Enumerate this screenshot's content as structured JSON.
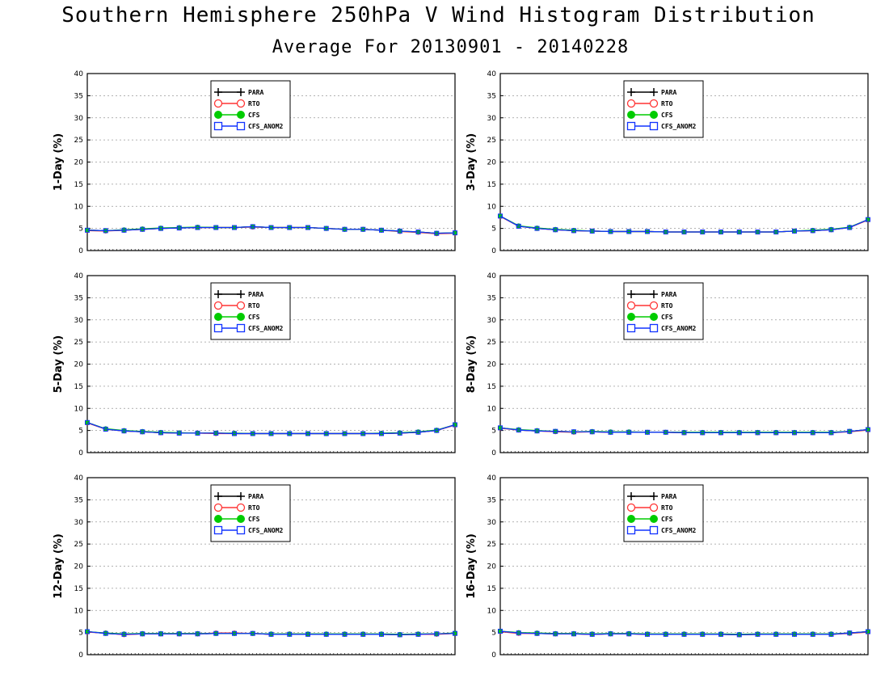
{
  "page": {
    "title": "Southern Hemisphere 250hPa V Wind Histogram Distribution",
    "subtitle": "Average For 20130901 - 20140228"
  },
  "legend_entries": [
    {
      "name": "PARA",
      "color": "#000000",
      "marker": "plus"
    },
    {
      "name": "RTO",
      "color": "#ff3333",
      "marker": "open-circle"
    },
    {
      "name": "CFS",
      "color": "#00cc00",
      "marker": "filled-circle"
    },
    {
      "name": "CFS_ANOM2",
      "color": "#1133ff",
      "marker": "open-square"
    }
  ],
  "chart_data": [
    {
      "type": "line",
      "ylabel": "1-Day (%)",
      "ylim": [
        0,
        40
      ],
      "yticks": [
        0,
        5,
        10,
        15,
        20,
        25,
        30,
        35,
        40
      ],
      "grid": true,
      "legend_position": "top-center",
      "x": [
        1,
        2,
        3,
        4,
        5,
        6,
        7,
        8,
        9,
        10,
        11,
        12,
        13,
        14,
        15,
        16,
        17,
        18,
        19,
        20,
        21
      ],
      "series": [
        {
          "name": "PARA",
          "color": "#000000",
          "values": [
            4.6,
            4.5,
            4.6,
            4.8,
            5.0,
            5.1,
            5.2,
            5.2,
            5.2,
            5.4,
            5.2,
            5.2,
            5.2,
            5.0,
            4.8,
            4.8,
            4.6,
            4.4,
            4.2,
            3.9,
            4.0
          ]
        },
        {
          "name": "RTO",
          "color": "#ff3333",
          "values": [
            4.5,
            4.4,
            4.6,
            4.8,
            5.0,
            5.1,
            5.2,
            5.2,
            5.2,
            5.3,
            5.2,
            5.2,
            5.2,
            5.0,
            4.8,
            4.8,
            4.6,
            4.3,
            4.1,
            3.8,
            3.9
          ]
        },
        {
          "name": "CFS",
          "color": "#00cc00",
          "values": [
            4.6,
            4.5,
            4.7,
            4.9,
            5.1,
            5.2,
            5.3,
            5.2,
            5.2,
            5.4,
            5.2,
            5.2,
            5.2,
            5.0,
            4.8,
            4.8,
            4.6,
            4.4,
            4.2,
            3.9,
            4.0
          ]
        },
        {
          "name": "CFS_ANOM2",
          "color": "#1133ff",
          "values": [
            4.6,
            4.5,
            4.6,
            4.8,
            5.0,
            5.1,
            5.2,
            5.2,
            5.2,
            5.4,
            5.2,
            5.2,
            5.2,
            5.0,
            4.8,
            4.8,
            4.6,
            4.4,
            4.2,
            3.9,
            4.0
          ]
        }
      ]
    },
    {
      "type": "line",
      "ylabel": "3-Day (%)",
      "ylim": [
        0,
        40
      ],
      "yticks": [
        0,
        5,
        10,
        15,
        20,
        25,
        30,
        35,
        40
      ],
      "grid": true,
      "legend_position": "top-center",
      "x": [
        1,
        2,
        3,
        4,
        5,
        6,
        7,
        8,
        9,
        10,
        11,
        12,
        13,
        14,
        15,
        16,
        17,
        18,
        19,
        20,
        21
      ],
      "series": [
        {
          "name": "PARA",
          "color": "#000000",
          "values": [
            7.8,
            5.5,
            5.0,
            4.7,
            4.5,
            4.4,
            4.3,
            4.3,
            4.3,
            4.2,
            4.2,
            4.2,
            4.2,
            4.2,
            4.2,
            4.2,
            4.4,
            4.5,
            4.7,
            5.2,
            7.0
          ]
        },
        {
          "name": "RTO",
          "color": "#ff3333",
          "values": [
            7.7,
            5.5,
            5.0,
            4.7,
            4.5,
            4.4,
            4.3,
            4.3,
            4.3,
            4.2,
            4.2,
            4.2,
            4.2,
            4.2,
            4.2,
            4.2,
            4.4,
            4.5,
            4.7,
            5.2,
            6.9
          ]
        },
        {
          "name": "CFS",
          "color": "#00cc00",
          "values": [
            7.8,
            5.6,
            5.1,
            4.8,
            4.6,
            4.4,
            4.3,
            4.3,
            4.3,
            4.2,
            4.2,
            4.2,
            4.2,
            4.2,
            4.2,
            4.2,
            4.4,
            4.6,
            4.8,
            5.3,
            7.0
          ]
        },
        {
          "name": "CFS_ANOM2",
          "color": "#1133ff",
          "values": [
            7.8,
            5.5,
            5.0,
            4.7,
            4.5,
            4.4,
            4.3,
            4.3,
            4.3,
            4.2,
            4.2,
            4.2,
            4.2,
            4.2,
            4.2,
            4.2,
            4.4,
            4.5,
            4.7,
            5.2,
            7.0
          ]
        }
      ]
    },
    {
      "type": "line",
      "ylabel": "5-Day (%)",
      "ylim": [
        0,
        40
      ],
      "yticks": [
        0,
        5,
        10,
        15,
        20,
        25,
        30,
        35,
        40
      ],
      "grid": true,
      "legend_position": "top-center",
      "x": [
        1,
        2,
        3,
        4,
        5,
        6,
        7,
        8,
        9,
        10,
        11,
        12,
        13,
        14,
        15,
        16,
        17,
        18,
        19,
        20,
        21
      ],
      "series": [
        {
          "name": "PARA",
          "color": "#000000",
          "values": [
            6.8,
            5.3,
            4.9,
            4.7,
            4.5,
            4.4,
            4.4,
            4.4,
            4.3,
            4.3,
            4.3,
            4.3,
            4.3,
            4.3,
            4.3,
            4.3,
            4.3,
            4.4,
            4.6,
            5.0,
            6.3
          ]
        },
        {
          "name": "RTO",
          "color": "#ff3333",
          "values": [
            6.7,
            5.3,
            4.9,
            4.7,
            4.5,
            4.4,
            4.4,
            4.3,
            4.3,
            4.3,
            4.3,
            4.3,
            4.3,
            4.3,
            4.3,
            4.3,
            4.3,
            4.4,
            4.6,
            5.0,
            6.2
          ]
        },
        {
          "name": "CFS",
          "color": "#00cc00",
          "values": [
            6.8,
            5.4,
            5.0,
            4.8,
            4.6,
            4.5,
            4.4,
            4.4,
            4.4,
            4.3,
            4.3,
            4.3,
            4.3,
            4.3,
            4.3,
            4.3,
            4.4,
            4.5,
            4.7,
            5.1,
            6.3
          ]
        },
        {
          "name": "CFS_ANOM2",
          "color": "#1133ff",
          "values": [
            6.8,
            5.3,
            4.9,
            4.7,
            4.5,
            4.4,
            4.4,
            4.4,
            4.3,
            4.3,
            4.3,
            4.3,
            4.3,
            4.3,
            4.3,
            4.3,
            4.3,
            4.4,
            4.6,
            5.0,
            6.3
          ]
        }
      ]
    },
    {
      "type": "line",
      "ylabel": "8-Day (%)",
      "ylim": [
        0,
        40
      ],
      "yticks": [
        0,
        5,
        10,
        15,
        20,
        25,
        30,
        35,
        40
      ],
      "grid": true,
      "legend_position": "top-center",
      "x": [
        1,
        2,
        3,
        4,
        5,
        6,
        7,
        8,
        9,
        10,
        11,
        12,
        13,
        14,
        15,
        16,
        17,
        18,
        19,
        20,
        21
      ],
      "series": [
        {
          "name": "PARA",
          "color": "#000000",
          "values": [
            5.6,
            5.1,
            4.9,
            4.8,
            4.7,
            4.7,
            4.6,
            4.6,
            4.6,
            4.6,
            4.5,
            4.5,
            4.5,
            4.5,
            4.5,
            4.5,
            4.5,
            4.5,
            4.5,
            4.8,
            5.2
          ]
        },
        {
          "name": "RTO",
          "color": "#ff3333",
          "values": [
            5.5,
            5.1,
            4.9,
            4.7,
            4.6,
            4.7,
            4.6,
            4.6,
            4.6,
            4.6,
            4.5,
            4.5,
            4.5,
            4.5,
            4.5,
            4.5,
            4.5,
            4.5,
            4.5,
            4.7,
            5.1
          ]
        },
        {
          "name": "CFS",
          "color": "#00cc00",
          "values": [
            5.6,
            5.2,
            5.0,
            4.8,
            4.7,
            4.8,
            4.7,
            4.7,
            4.6,
            4.6,
            4.6,
            4.6,
            4.6,
            4.6,
            4.6,
            4.6,
            4.6,
            4.6,
            4.6,
            4.8,
            5.2
          ]
        },
        {
          "name": "CFS_ANOM2",
          "color": "#1133ff",
          "values": [
            5.6,
            5.1,
            4.9,
            4.8,
            4.7,
            4.7,
            4.6,
            4.6,
            4.6,
            4.6,
            4.5,
            4.5,
            4.5,
            4.5,
            4.5,
            4.5,
            4.5,
            4.5,
            4.5,
            4.8,
            5.2
          ]
        }
      ]
    },
    {
      "type": "line",
      "ylabel": "12-Day (%)",
      "ylim": [
        0,
        40
      ],
      "yticks": [
        0,
        5,
        10,
        15,
        20,
        25,
        30,
        35,
        40
      ],
      "grid": true,
      "legend_position": "top-center",
      "x": [
        1,
        2,
        3,
        4,
        5,
        6,
        7,
        8,
        9,
        10,
        11,
        12,
        13,
        14,
        15,
        16,
        17,
        18,
        19,
        20,
        21
      ],
      "series": [
        {
          "name": "PARA",
          "color": "#000000",
          "values": [
            5.2,
            4.8,
            4.6,
            4.7,
            4.7,
            4.7,
            4.7,
            4.8,
            4.8,
            4.8,
            4.6,
            4.6,
            4.6,
            4.6,
            4.6,
            4.6,
            4.6,
            4.5,
            4.6,
            4.7,
            4.8
          ]
        },
        {
          "name": "RTO",
          "color": "#ff3333",
          "values": [
            5.1,
            4.9,
            4.5,
            4.7,
            4.7,
            4.7,
            4.7,
            4.9,
            4.9,
            4.8,
            4.6,
            4.7,
            4.6,
            4.6,
            4.6,
            4.6,
            4.6,
            4.5,
            4.6,
            4.6,
            4.8
          ]
        },
        {
          "name": "CFS",
          "color": "#00cc00",
          "values": [
            5.2,
            4.9,
            4.7,
            4.8,
            4.8,
            4.8,
            4.8,
            4.8,
            4.8,
            4.8,
            4.7,
            4.7,
            4.7,
            4.7,
            4.7,
            4.7,
            4.7,
            4.6,
            4.7,
            4.7,
            4.9
          ]
        },
        {
          "name": "CFS_ANOM2",
          "color": "#1133ff",
          "values": [
            5.2,
            4.8,
            4.6,
            4.7,
            4.7,
            4.7,
            4.7,
            4.8,
            4.8,
            4.8,
            4.6,
            4.6,
            4.6,
            4.6,
            4.6,
            4.6,
            4.6,
            4.5,
            4.6,
            4.7,
            4.8
          ]
        }
      ]
    },
    {
      "type": "line",
      "ylabel": "16-Day (%)",
      "ylim": [
        0,
        40
      ],
      "yticks": [
        0,
        5,
        10,
        15,
        20,
        25,
        30,
        35,
        40
      ],
      "grid": true,
      "legend_position": "top-center",
      "x": [
        1,
        2,
        3,
        4,
        5,
        6,
        7,
        8,
        9,
        10,
        11,
        12,
        13,
        14,
        15,
        16,
        17,
        18,
        19,
        20,
        21
      ],
      "series": [
        {
          "name": "PARA",
          "color": "#000000",
          "values": [
            5.3,
            4.9,
            4.8,
            4.7,
            4.7,
            4.6,
            4.7,
            4.7,
            4.6,
            4.6,
            4.6,
            4.6,
            4.6,
            4.5,
            4.6,
            4.6,
            4.6,
            4.6,
            4.6,
            4.9,
            5.2
          ]
        },
        {
          "name": "RTO",
          "color": "#ff3333",
          "values": [
            5.2,
            4.8,
            4.8,
            4.7,
            4.7,
            4.6,
            4.7,
            4.7,
            4.6,
            4.6,
            4.6,
            4.6,
            4.6,
            4.5,
            4.6,
            4.6,
            4.6,
            4.6,
            4.6,
            4.8,
            5.1
          ]
        },
        {
          "name": "CFS",
          "color": "#00cc00",
          "values": [
            5.3,
            5.0,
            4.9,
            4.8,
            4.8,
            4.7,
            4.8,
            4.8,
            4.7,
            4.7,
            4.7,
            4.7,
            4.7,
            4.6,
            4.7,
            4.7,
            4.7,
            4.7,
            4.7,
            4.9,
            5.2
          ]
        },
        {
          "name": "CFS_ANOM2",
          "color": "#1133ff",
          "values": [
            5.3,
            4.9,
            4.8,
            4.7,
            4.7,
            4.6,
            4.7,
            4.7,
            4.6,
            4.6,
            4.6,
            4.6,
            4.6,
            4.5,
            4.6,
            4.6,
            4.6,
            4.6,
            4.6,
            4.9,
            5.2
          ]
        }
      ]
    }
  ]
}
